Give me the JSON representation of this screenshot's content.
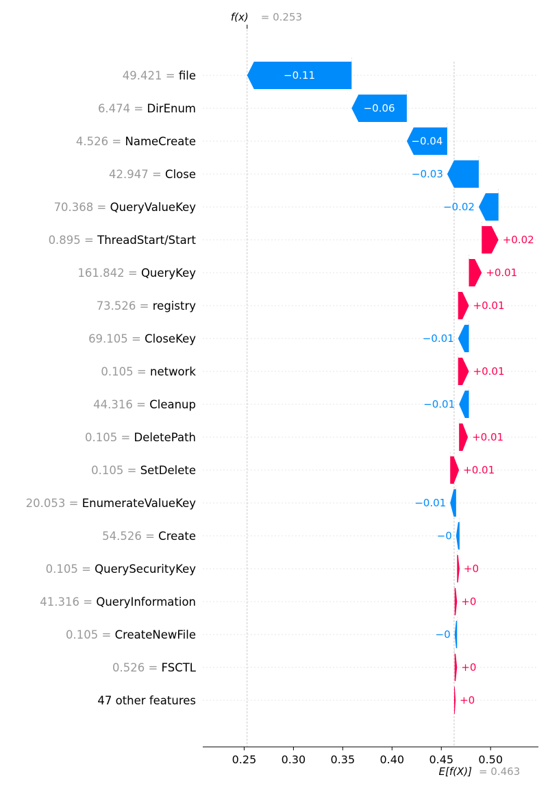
{
  "chart_data": {
    "type": "waterfall",
    "fx_label": "f(x)",
    "fx_value_text": "= 0.253",
    "ex_label": "E[f(X)]",
    "ex_value_text": "= 0.463",
    "fx": 0.253,
    "ex": 0.463,
    "xlim": [
      0.208,
      0.5485
    ],
    "xticks": [
      0.25,
      0.3,
      0.35,
      0.4,
      0.45,
      0.5
    ],
    "xtick_labels": [
      "0.25",
      "0.30",
      "0.35",
      "0.40",
      "0.45",
      "0.50"
    ],
    "positive_color": "#ff0051",
    "negative_color": "#008bfb",
    "features": [
      {
        "value": "49.421",
        "name": "file",
        "start": 0.359,
        "end": 0.253,
        "label": "−0.11"
      },
      {
        "value": "6.474",
        "name": "DirEnum",
        "start": 0.415,
        "end": 0.359,
        "label": "−0.06"
      },
      {
        "value": "4.526",
        "name": "NameCreate",
        "start": 0.456,
        "end": 0.415,
        "label": "−0.04"
      },
      {
        "value": "42.947",
        "name": "Close",
        "start": 0.488,
        "end": 0.456,
        "label": "−0.03"
      },
      {
        "value": "70.368",
        "name": "QueryValueKey",
        "start": 0.508,
        "end": 0.488,
        "label": "−0.02"
      },
      {
        "value": "0.895",
        "name": "ThreadStart/Start",
        "start": 0.491,
        "end": 0.508,
        "label": "+0.02"
      },
      {
        "value": "161.842",
        "name": "QueryKey",
        "start": 0.478,
        "end": 0.491,
        "label": "+0.01"
      },
      {
        "value": "73.526",
        "name": "registry",
        "start": 0.467,
        "end": 0.478,
        "label": "+0.01"
      },
      {
        "value": "69.105",
        "name": "CloseKey",
        "start": 0.478,
        "end": 0.467,
        "label": "−0.01"
      },
      {
        "value": "0.105",
        "name": "network",
        "start": 0.467,
        "end": 0.478,
        "label": "+0.01"
      },
      {
        "value": "44.316",
        "name": "Cleanup",
        "start": 0.478,
        "end": 0.468,
        "label": "−0.01"
      },
      {
        "value": "0.105",
        "name": "DeletePath",
        "start": 0.468,
        "end": 0.477,
        "label": "+0.01"
      },
      {
        "value": "0.105",
        "name": "SetDelete",
        "start": 0.459,
        "end": 0.468,
        "label": "+0.01"
      },
      {
        "value": "20.053",
        "name": "EnumerateValueKey",
        "start": 0.465,
        "end": 0.459,
        "label": "−0.01"
      },
      {
        "value": "54.526",
        "name": "Create",
        "start": 0.4685,
        "end": 0.465,
        "label": "−0"
      },
      {
        "value": "0.105",
        "name": "QuerySecurityKey",
        "start": 0.466,
        "end": 0.4685,
        "label": "+0"
      },
      {
        "value": "41.316",
        "name": "QueryInformation",
        "start": 0.4635,
        "end": 0.466,
        "label": "+0"
      },
      {
        "value": "0.105",
        "name": "CreateNewFile",
        "start": 0.466,
        "end": 0.4635,
        "label": "−0"
      },
      {
        "value": "0.526",
        "name": "FSCTL",
        "start": 0.4635,
        "end": 0.466,
        "label": "+0"
      },
      {
        "value": "",
        "name": "47 other features",
        "start": 0.463,
        "end": 0.4645,
        "label": "+0"
      }
    ]
  }
}
